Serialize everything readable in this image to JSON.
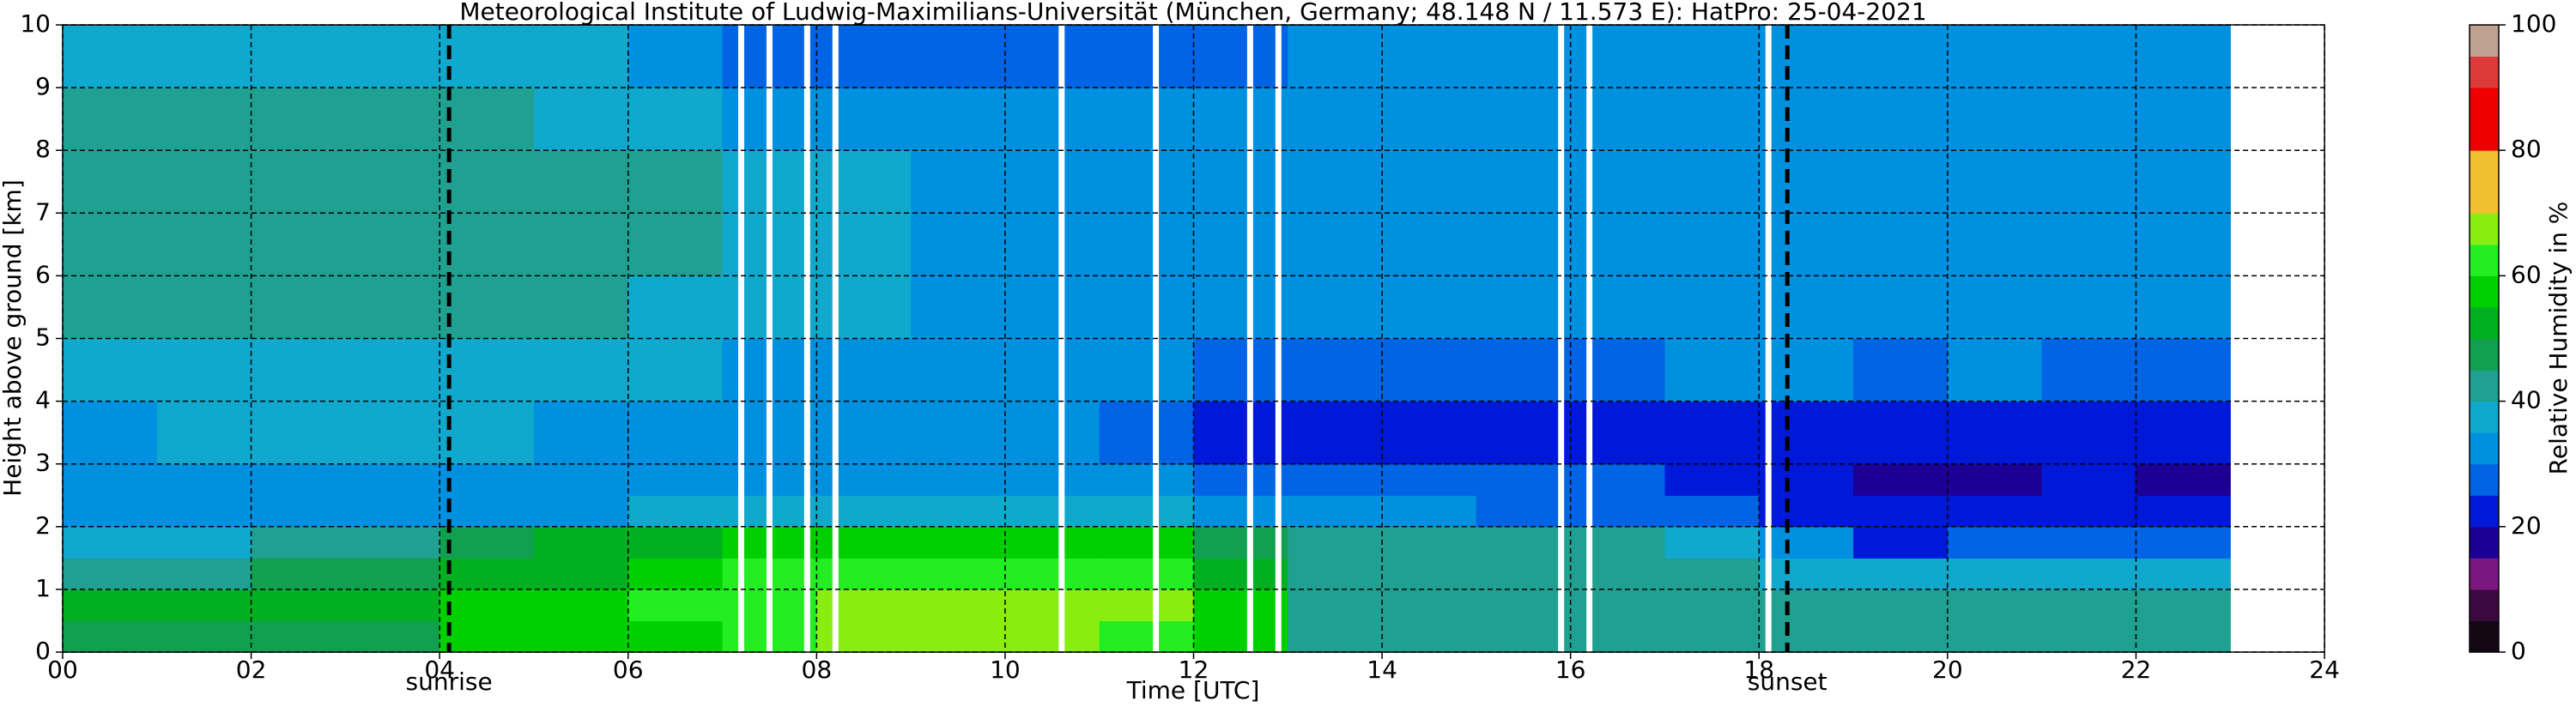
{
  "chart_data": {
    "type": "heatmap",
    "title": "Meteorological Institute of Ludwig-Maximilians-Universität (München, Germany; 48.148 N / 11.573 E):    HatPro: 25-04-2021",
    "x_label": "Time [UTC]",
    "y_label": "Height above ground [km]",
    "colorbar_label": "Relative Humidity in %",
    "xlim": [
      0,
      24
    ],
    "ylim": [
      0,
      10
    ],
    "xticks": [
      {
        "value": 0,
        "label": "00"
      },
      {
        "value": 2,
        "label": "02"
      },
      {
        "value": 4,
        "label": "04"
      },
      {
        "value": 6,
        "label": "06"
      },
      {
        "value": 8,
        "label": "08"
      },
      10,
      12,
      14,
      16,
      18,
      20,
      22,
      24
    ],
    "yticks": [
      0,
      1,
      2,
      3,
      4,
      5,
      6,
      7,
      8,
      9,
      10
    ],
    "grid": true,
    "x_edges": [
      0,
      1,
      2,
      3,
      4,
      5,
      6,
      7,
      8,
      9,
      10,
      11,
      12,
      13,
      14,
      15,
      16,
      17,
      18,
      19,
      20,
      21,
      22,
      23
    ],
    "y_edges": [
      0,
      0.5,
      1,
      1.5,
      2,
      2.5,
      3,
      4,
      5,
      6,
      7,
      8,
      9,
      10
    ],
    "z": [
      [
        47,
        47,
        48,
        49,
        55,
        57,
        58,
        62,
        66,
        68,
        67,
        64,
        58,
        44,
        43,
        42,
        42,
        42,
        42,
        41,
        41,
        41,
        41
      ],
      [
        50,
        50,
        50,
        50,
        56,
        58,
        60,
        64,
        68,
        69,
        68,
        65,
        58,
        44,
        43,
        43,
        42,
        42,
        42,
        41,
        41,
        41,
        41
      ],
      [
        43,
        44,
        48,
        48,
        52,
        54,
        57,
        62,
        63,
        63,
        62,
        60,
        52,
        42,
        42,
        42,
        41,
        41,
        39,
        37,
        38,
        38,
        38
      ],
      [
        37,
        38,
        40,
        42,
        45,
        50,
        52,
        56,
        58,
        58,
        58,
        55,
        48,
        40,
        40,
        40,
        40,
        38,
        30,
        24,
        27,
        25,
        28
      ],
      [
        33,
        34,
        34,
        34,
        34,
        34,
        35,
        37,
        37,
        37,
        37,
        35,
        30,
        30,
        30,
        29,
        28,
        27,
        23,
        20,
        21,
        20,
        20
      ],
      [
        30,
        33,
        33,
        33,
        33,
        33,
        33,
        33,
        33,
        33,
        33,
        30,
        27,
        26,
        26,
        25,
        25,
        24,
        22,
        18,
        19,
        20,
        19
      ],
      [
        34,
        35,
        35,
        35,
        35,
        34,
        34,
        33,
        33,
        33,
        33,
        28,
        23,
        22,
        22,
        22,
        22,
        23,
        23,
        22,
        23,
        22,
        23
      ],
      [
        36,
        37,
        37,
        37,
        37,
        36,
        35,
        34,
        33,
        33,
        33,
        30,
        27,
        26,
        26,
        27,
        29,
        31,
        31,
        27,
        30,
        28,
        29
      ],
      [
        40,
        41,
        41,
        40,
        40,
        40,
        38,
        35,
        35,
        34,
        34,
        33,
        33,
        33,
        33,
        33,
        33,
        33,
        33,
        30,
        33,
        31,
        33
      ],
      [
        42,
        43,
        44,
        43,
        42,
        42,
        40,
        36,
        35,
        34,
        34,
        34,
        34,
        34,
        34,
        34,
        34,
        34,
        34,
        32,
        34,
        33,
        34
      ],
      [
        42,
        42,
        43,
        42,
        42,
        41,
        40,
        36,
        35,
        34,
        34,
        34,
        34,
        34,
        34,
        34,
        34,
        34,
        34,
        33,
        34,
        34,
        34
      ],
      [
        40,
        40,
        40,
        40,
        40,
        39,
        38,
        34,
        33,
        33,
        33,
        33,
        33,
        33,
        33,
        33,
        33,
        33,
        33,
        33,
        33,
        33,
        33
      ],
      [
        36,
        36,
        36,
        36,
        36,
        35,
        34,
        28,
        27,
        27,
        27,
        27,
        28,
        30,
        31,
        31,
        31,
        31,
        31,
        31,
        31,
        31,
        31
      ]
    ],
    "levels": [
      0,
      5,
      10,
      15,
      20,
      25,
      30,
      35,
      40,
      45,
      50,
      55,
      60,
      65,
      70,
      75,
      80,
      85,
      90,
      95,
      100
    ],
    "colors": [
      "#140814",
      "#3c0a40",
      "#7a1880",
      "#1c0096",
      "#0018d8",
      "#0064e4",
      "#0090e0",
      "#10a8cc",
      "#20a090",
      "#10a050",
      "#00b020",
      "#00d000",
      "#22ee22",
      "#88ee10",
      "#f0c030",
      "#f0c030",
      "#ee0000",
      "#ee0000",
      "#dd3a3a",
      "#c0a090"
    ],
    "colorbar_ticks": [
      0,
      20,
      40,
      60,
      80,
      100
    ],
    "missing_times": [
      7.2,
      7.5,
      7.9,
      8.2,
      10.6,
      11.6,
      12.6,
      12.9,
      15.9,
      16.2,
      18.1
    ],
    "markers": [
      {
        "x": 4.1,
        "label": "sunrise"
      },
      {
        "x": 18.3,
        "label": "sunset"
      }
    ]
  }
}
